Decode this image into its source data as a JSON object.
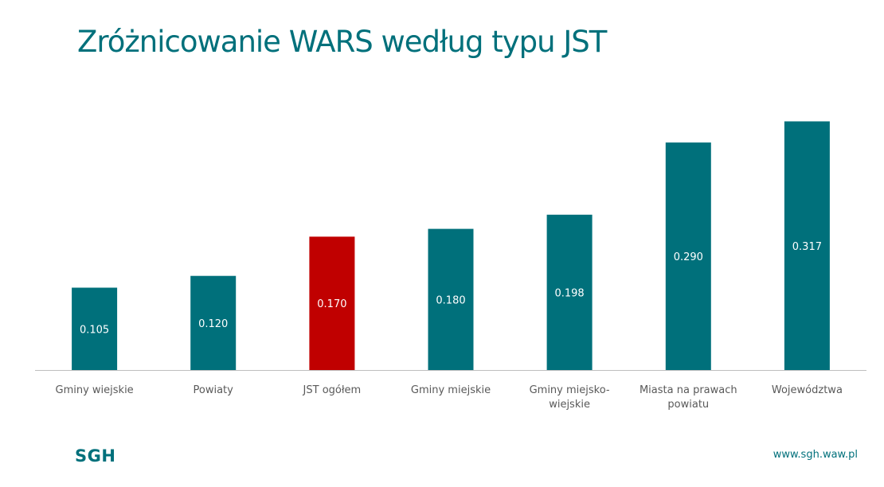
{
  "colors": {
    "brand": "#00707b",
    "highlight": "#c00000",
    "axis": "#bfbfbf",
    "tick_text": "#595959",
    "data_label_text": "#ffffff"
  },
  "chart_data": {
    "type": "bar",
    "title": "Zróżnicowanie WARS według typu JST",
    "categories": [
      [
        "Gminy wiejskie"
      ],
      [
        "Powiaty"
      ],
      [
        "JST ogółem"
      ],
      [
        "Gminy miejskie"
      ],
      [
        "Gminy miejsko-",
        "wiejskie"
      ],
      [
        "Miasta na prawach",
        "powiatu"
      ],
      [
        "Województwa"
      ]
    ],
    "values": [
      0.105,
      0.12,
      0.17,
      0.18,
      0.198,
      0.29,
      0.317
    ],
    "data_labels": [
      "0.105",
      "0.120",
      "0.170",
      "0.180",
      "0.198",
      "0.290",
      "0.317"
    ],
    "highlight_index": 2,
    "ylim": [
      0,
      0.35
    ],
    "grid": false,
    "legend": false,
    "xlabel": "",
    "ylabel": ""
  },
  "footer": {
    "logo_text": "SGH",
    "url": "www.sgh.waw.pl"
  }
}
